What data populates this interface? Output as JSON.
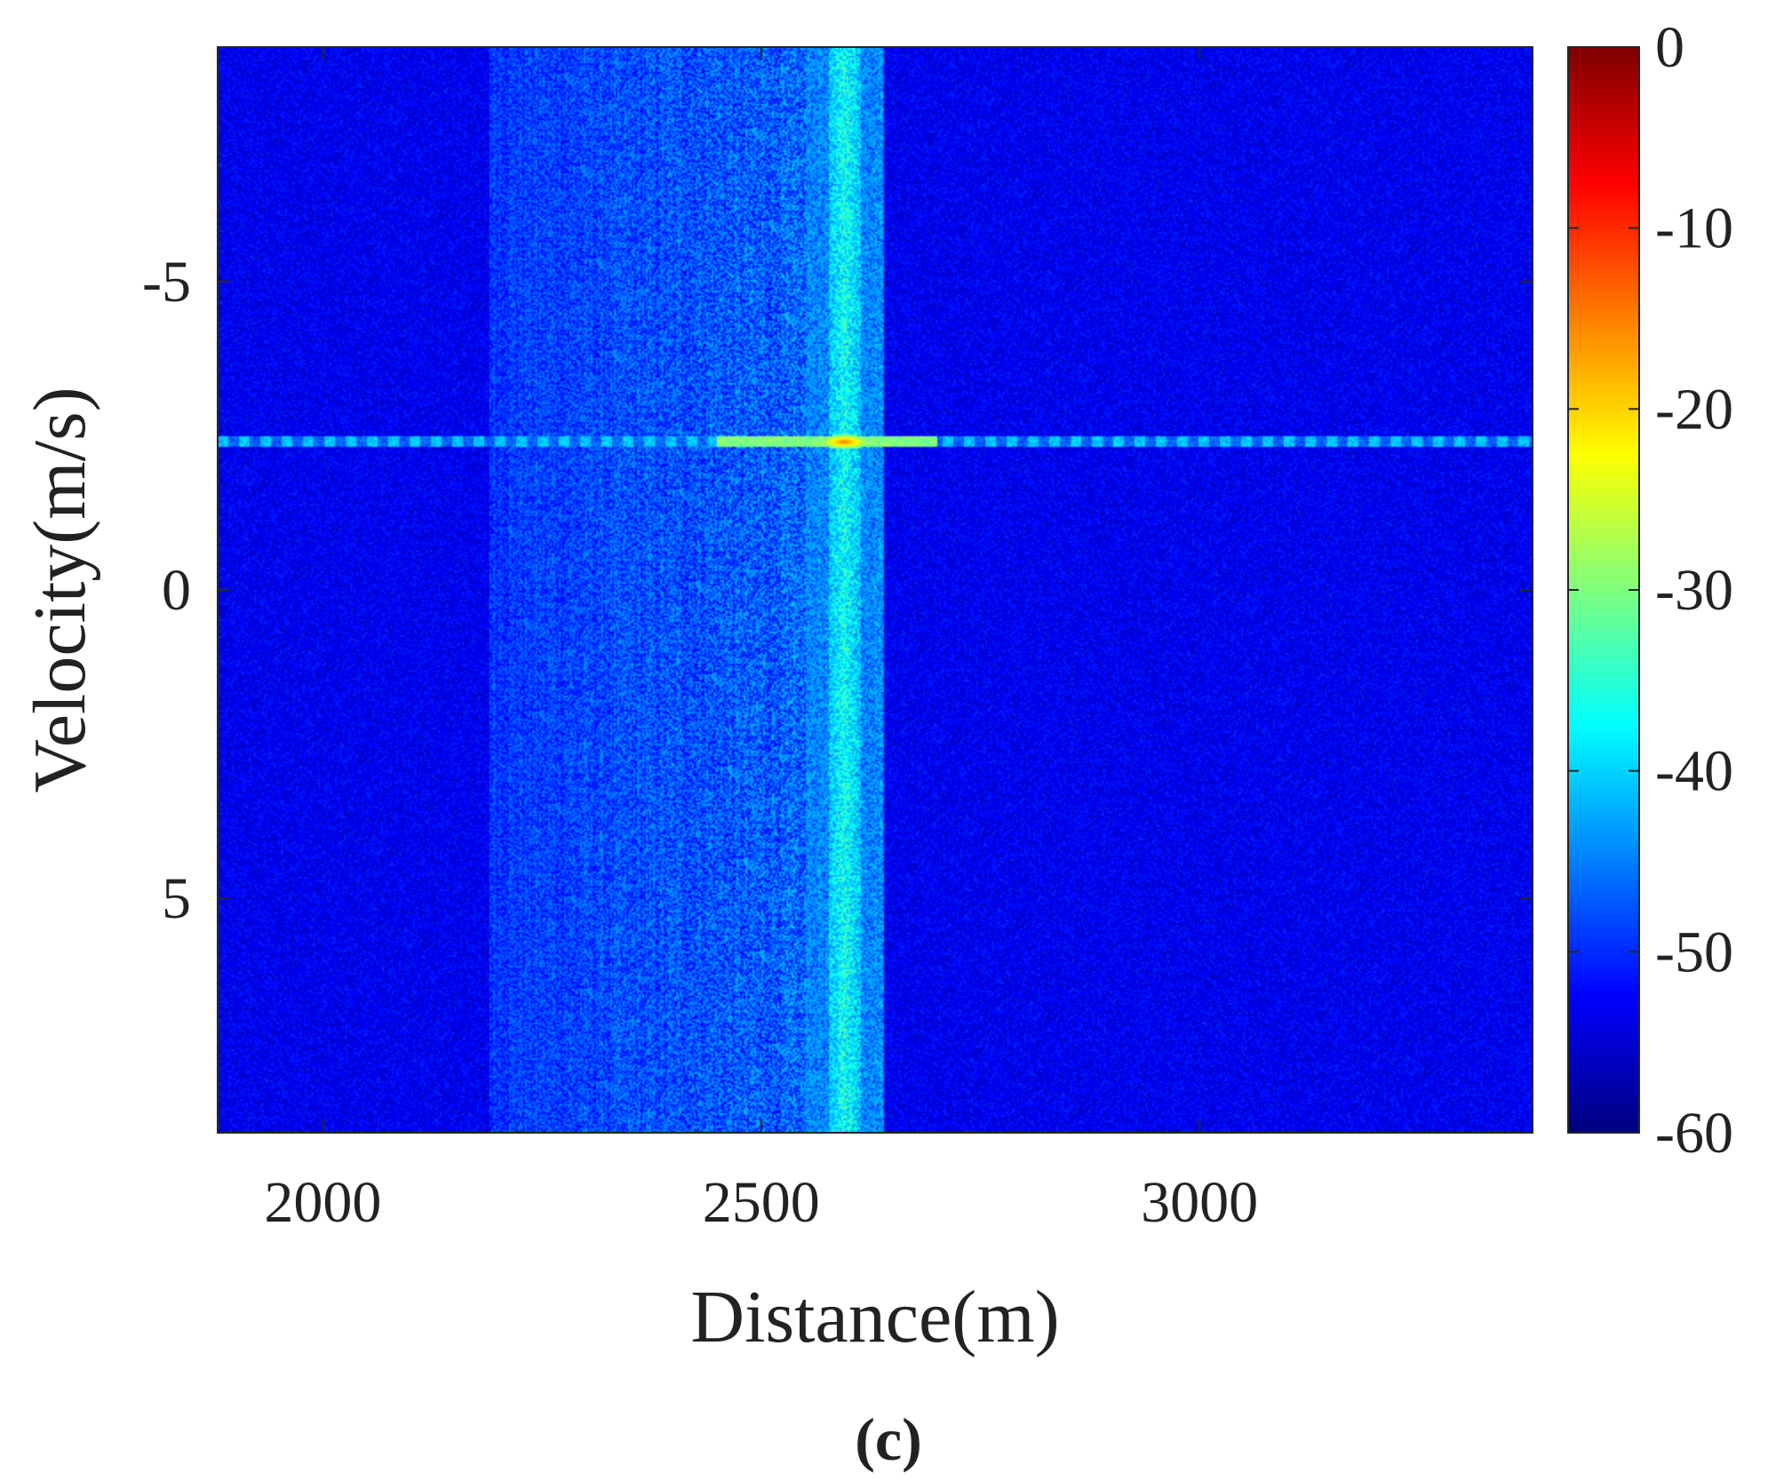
{
  "chart_data": {
    "type": "heatmap",
    "xlabel": "Distance(m)",
    "ylabel": "Velocity(m/s)",
    "xlim": [
      1880,
      3380
    ],
    "ylim": [
      -8.8,
      8.8
    ],
    "y_reversed": true,
    "x_ticks": [
      2000,
      2500,
      3000
    ],
    "y_ticks": [
      -5,
      0,
      5
    ],
    "x_tick_labels": [
      "2000",
      "2500",
      "3000"
    ],
    "y_tick_labels": [
      "-5",
      "0",
      "5"
    ],
    "colorbar": {
      "colormap": "jet",
      "range": [
        -60,
        0
      ],
      "ticks": [
        0,
        -10,
        -20,
        -30,
        -40,
        -50,
        -60
      ],
      "tick_labels": [
        "0",
        "-10",
        "-20",
        "-30",
        "-40",
        "-50",
        "-60"
      ]
    },
    "features": {
      "noise_floor_db": -60,
      "clutter_band_distance": [
        2190,
        2640
      ],
      "strong_column_distance": 2595,
      "horizontal_line_velocity": -2.4,
      "target": {
        "distance": 2595,
        "velocity": -2.4,
        "level_db": -14
      }
    },
    "grid": false,
    "legend": "none"
  },
  "caption": "(c)"
}
